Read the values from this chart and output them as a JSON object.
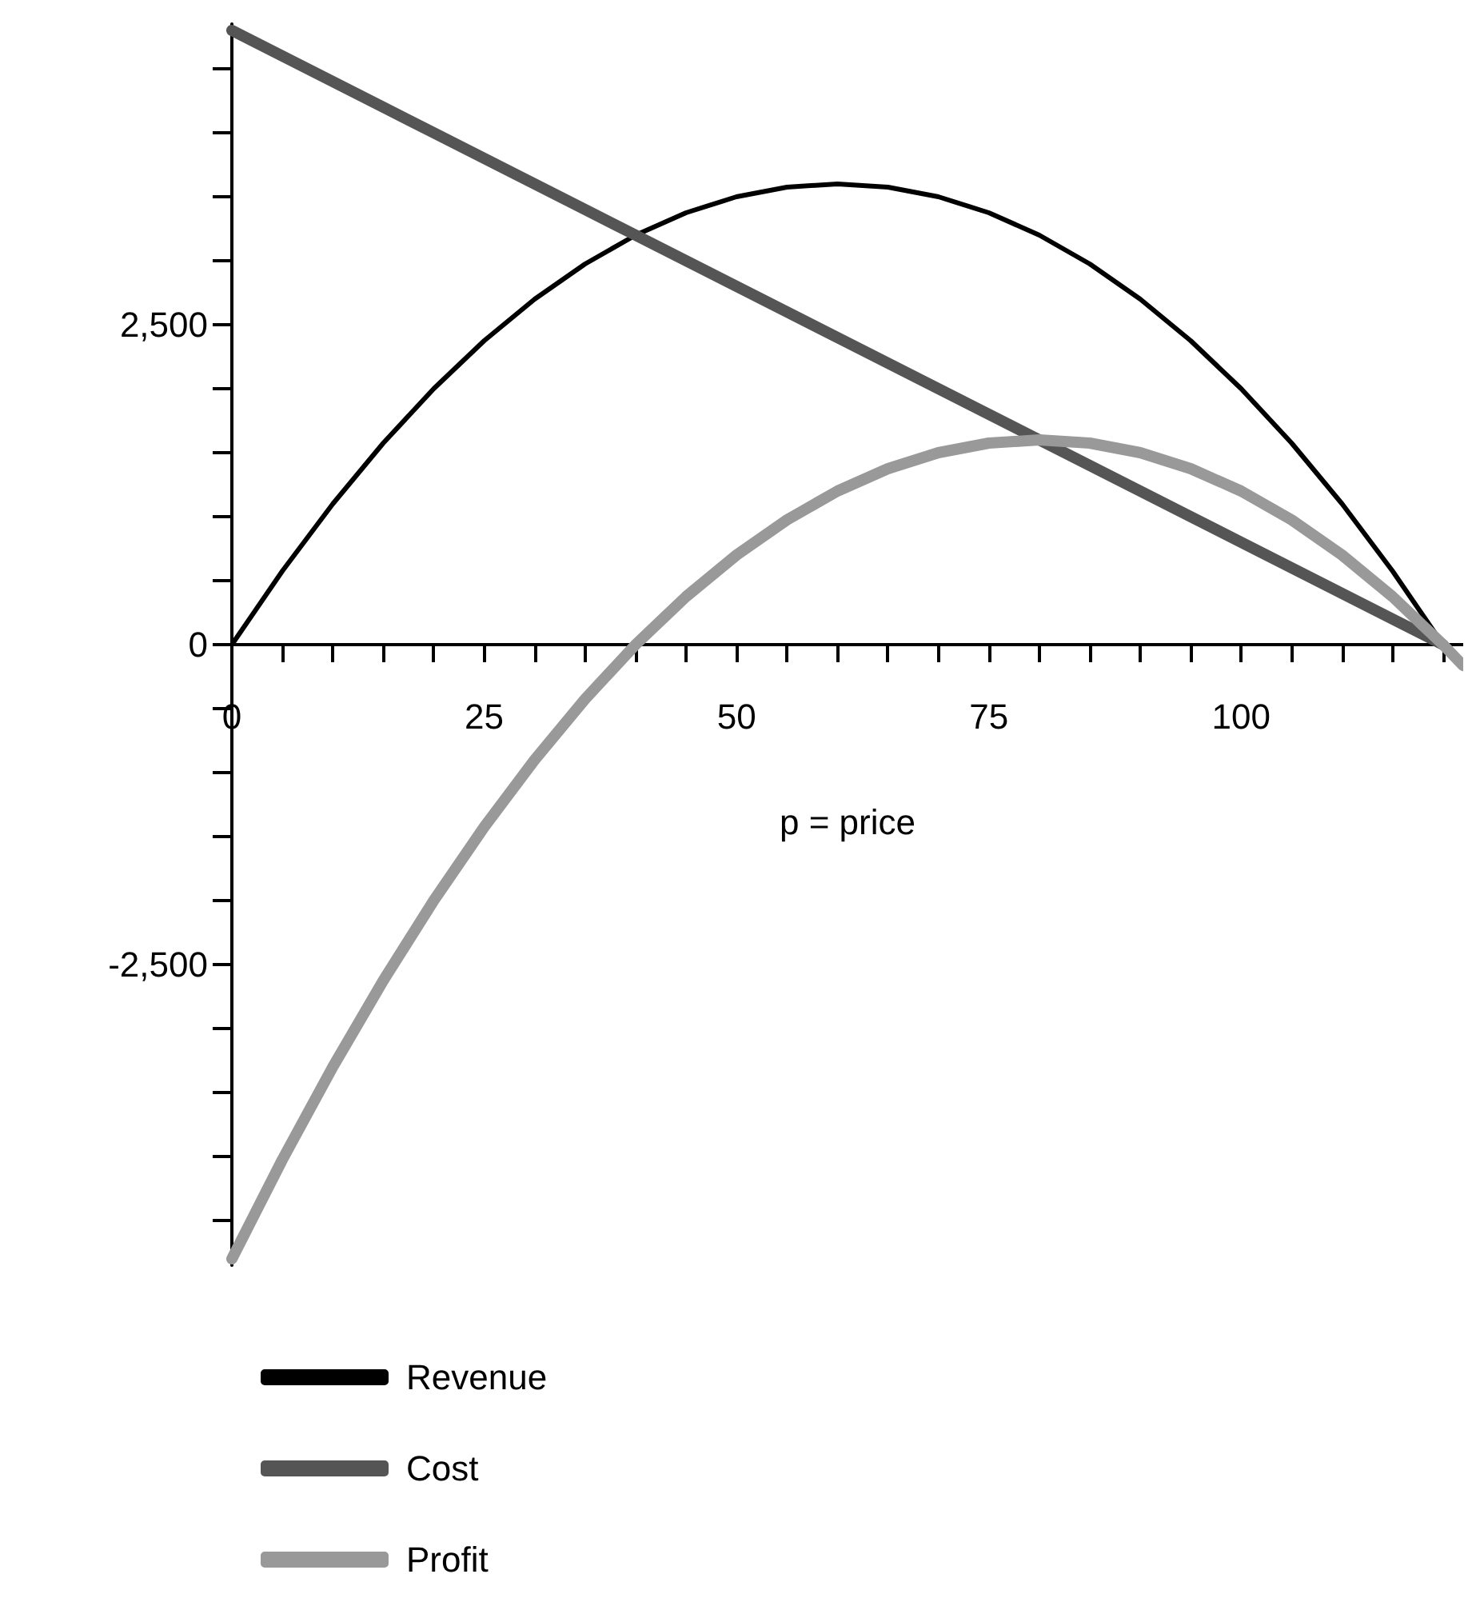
{
  "chart_data": {
    "type": "line",
    "xlabel": "p = price",
    "x": [
      0,
      5,
      10,
      15,
      20,
      25,
      30,
      35,
      40,
      45,
      50,
      55,
      60,
      65,
      70,
      75,
      80,
      85,
      90,
      95,
      100,
      105,
      110,
      115,
      120
    ],
    "series": [
      {
        "name": "Revenue",
        "color": "#000000",
        "values": [
          0,
          575,
          1100,
          1575,
          2000,
          2375,
          2700,
          2975,
          3200,
          3375,
          3500,
          3575,
          3600,
          3575,
          3500,
          3375,
          3200,
          2975,
          2700,
          2375,
          2000,
          1575,
          1100,
          575,
          0
        ]
      },
      {
        "name": "Cost",
        "color": "#555555",
        "values": [
          4800,
          4600,
          4400,
          4200,
          4000,
          3800,
          3600,
          3400,
          3200,
          3000,
          2800,
          2600,
          2400,
          2200,
          2000,
          1800,
          1600,
          1400,
          1200,
          1000,
          800,
          600,
          400,
          200,
          0
        ]
      },
      {
        "name": "Profit",
        "color": "#999999",
        "x": [
          0,
          5,
          10,
          15,
          20,
          25,
          30,
          35,
          40,
          45,
          50,
          55,
          60,
          65,
          70,
          75,
          80,
          85,
          90,
          95,
          100,
          105,
          110,
          115,
          120,
          122
        ],
        "values": [
          -4800,
          -4025,
          -3300,
          -2625,
          -2000,
          -1425,
          -900,
          -425,
          0,
          375,
          700,
          975,
          1200,
          1375,
          1500,
          1575,
          1600,
          1575,
          1500,
          1375,
          1200,
          975,
          700,
          375,
          0,
          -164
        ]
      }
    ],
    "xlim": [
      0,
      122
    ],
    "xticks": [
      0,
      {
        "value": 5,
        "label": null
      },
      {
        "value": 10,
        "label": null
      },
      {
        "value": 15,
        "label": null
      },
      {
        "value": 20,
        "label": null
      },
      25,
      {
        "value": 30,
        "label": null
      },
      {
        "value": 35,
        "label": null
      },
      {
        "value": 40,
        "label": null
      },
      {
        "value": 45,
        "label": null
      },
      50,
      {
        "value": 55,
        "label": null
      },
      {
        "value": 60,
        "label": null
      },
      {
        "value": 65,
        "label": null
      },
      {
        "value": 70,
        "label": null
      },
      75,
      {
        "value": 80,
        "label": null
      },
      {
        "value": 85,
        "label": null
      },
      {
        "value": 90,
        "label": null
      },
      {
        "value": 95,
        "label": null
      },
      100,
      {
        "value": 105,
        "label": null
      },
      {
        "value": 110,
        "label": null
      },
      {
        "value": 115,
        "label": null
      },
      {
        "value": 120,
        "label": null
      }
    ],
    "ylim": [
      -4850,
      4850
    ],
    "yticks": [
      {
        "value": -4500,
        "label": null
      },
      {
        "value": -4000,
        "label": null
      },
      {
        "value": -3500,
        "label": null
      },
      {
        "value": -3000,
        "label": null
      },
      {
        "value": -2500,
        "label": "-2,500"
      },
      {
        "value": -2000,
        "label": null
      },
      {
        "value": -1500,
        "label": null
      },
      {
        "value": -1000,
        "label": null
      },
      {
        "value": -500,
        "label": null
      },
      0,
      {
        "value": 500,
        "label": null
      },
      {
        "value": 1000,
        "label": null
      },
      {
        "value": 1500,
        "label": null
      },
      {
        "value": 2000,
        "label": null
      },
      {
        "value": 2500,
        "label": "2,500"
      },
      {
        "value": 3000,
        "label": null
      },
      {
        "value": 3500,
        "label": null
      },
      {
        "value": 4000,
        "label": null
      },
      {
        "value": 4500,
        "label": null
      }
    ],
    "grid": false,
    "legend": "bottom",
    "marker": "none",
    "line_style": "solid"
  }
}
